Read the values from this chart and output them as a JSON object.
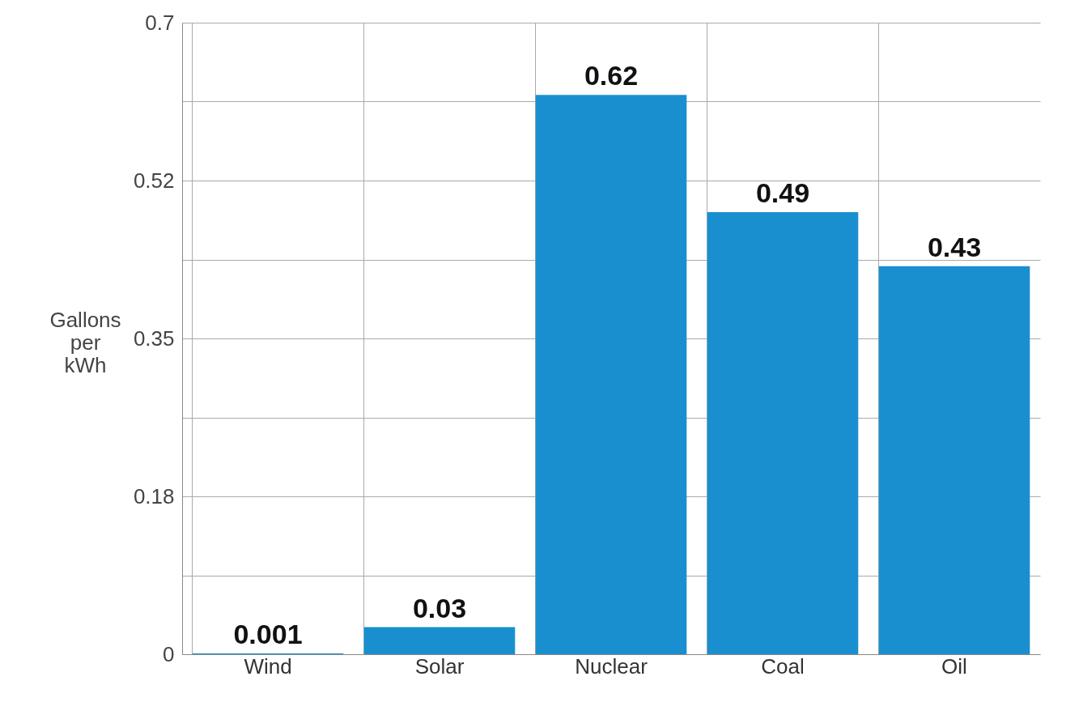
{
  "chart_data": {
    "type": "bar",
    "ylabel": "Gallons per kWh",
    "categories": [
      "Wind",
      "Solar",
      "Nuclear",
      "Coal",
      "Oil"
    ],
    "values": [
      0.001,
      0.03,
      0.62,
      0.49,
      0.43
    ],
    "color": "#1a8fd0",
    "ylim": [
      0,
      0.7
    ],
    "yticks": [
      0,
      {
        "value": 0.0875,
        "label": null
      },
      {
        "value": 0.175,
        "label": "0.18"
      },
      {
        "value": 0.2625,
        "label": null
      },
      0.35,
      {
        "value": 0.4375,
        "label": null
      },
      {
        "value": 0.525,
        "label": "0.52"
      },
      {
        "value": 0.6125,
        "label": null
      },
      0.7
    ],
    "grid": true,
    "data_labels": true
  }
}
